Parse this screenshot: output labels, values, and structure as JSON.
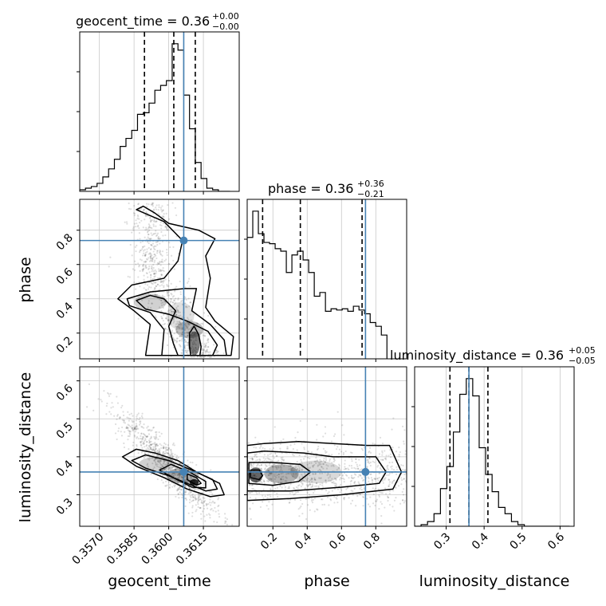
{
  "chart_data": {
    "type": "corner",
    "parameters": [
      "geocent_time",
      "phase",
      "luminosity_distance"
    ],
    "truths": {
      "geocent_time": 0.36065,
      "phase": 0.74,
      "luminosity_distance": 0.36
    },
    "truth_color": "#4682b4",
    "hist_color": "#000000",
    "grid": true,
    "axes": {
      "geocent_time": {
        "range": [
          0.35615,
          0.36305
        ],
        "ticks": [
          0.357,
          0.3585,
          0.36,
          0.3615
        ],
        "tick_labels": [
          "0.3570",
          "0.3585",
          "0.3600",
          "0.3615"
        ]
      },
      "phase": {
        "range": [
          0.05,
          0.98
        ],
        "ticks": [
          0.2,
          0.4,
          0.6,
          0.8
        ],
        "tick_labels": [
          "0.2",
          "0.4",
          "0.6",
          "0.8"
        ]
      },
      "luminosity_distance": {
        "range": [
          0.217,
          0.637
        ],
        "ticks": [
          0.3,
          0.4,
          0.5,
          0.6
        ],
        "tick_labels": [
          "0.3",
          "0.4",
          "0.5",
          "0.6"
        ]
      }
    },
    "titles": [
      {
        "param": "geocent_time",
        "prefix": "geocent_time = 0.36",
        "sup": "+0.00",
        "sub": "−0.00"
      },
      {
        "param": "phase",
        "prefix": "phase = 0.36",
        "sup": "+0.36",
        "sub": "−0.21"
      },
      {
        "param": "luminosity_distance",
        "prefix": "luminosity_distance = 0.36",
        "sup": "+0.05",
        "sub": "−0.05"
      }
    ],
    "quantiles": {
      "geocent_time": [
        0.35895,
        0.36022,
        0.36115
      ],
      "phase": [
        0.14,
        0.36,
        0.72
      ],
      "luminosity_distance": [
        0.31,
        0.36,
        0.41
      ]
    },
    "histograms": {
      "geocent_time": {
        "edges_start": 0.35615,
        "bin_width": 0.00025,
        "counts": [
          1,
          2,
          3,
          5,
          9,
          14,
          20,
          28,
          33,
          38,
          48,
          49,
          55,
          63,
          66,
          69,
          92,
          88,
          60,
          39,
          18,
          8,
          2,
          1,
          0,
          0
        ]
      },
      "phase": {
        "edges_start": 0.05,
        "bin_width": 0.0326,
        "counts": [
          97,
          118,
          100,
          93,
          92,
          88,
          86,
          69,
          83,
          86,
          79,
          69,
          50,
          53,
          38,
          40,
          39,
          40,
          38,
          42,
          39,
          36,
          29,
          26,
          19
        ]
      },
      "luminosity_distance": {
        "edges_start": 0.217,
        "bin_width": 0.017,
        "counts": [
          0,
          1,
          3,
          8,
          24,
          38,
          60,
          84,
          94,
          83,
          50,
          33,
          22,
          12,
          8,
          3,
          1,
          0,
          0,
          0,
          0,
          0,
          0,
          0
        ]
      }
    },
    "pairs": [
      {
        "x": "geocent_time",
        "y": "phase"
      },
      {
        "x": "geocent_time",
        "y": "luminosity_distance"
      },
      {
        "x": "phase",
        "y": "luminosity_distance"
      }
    ]
  }
}
